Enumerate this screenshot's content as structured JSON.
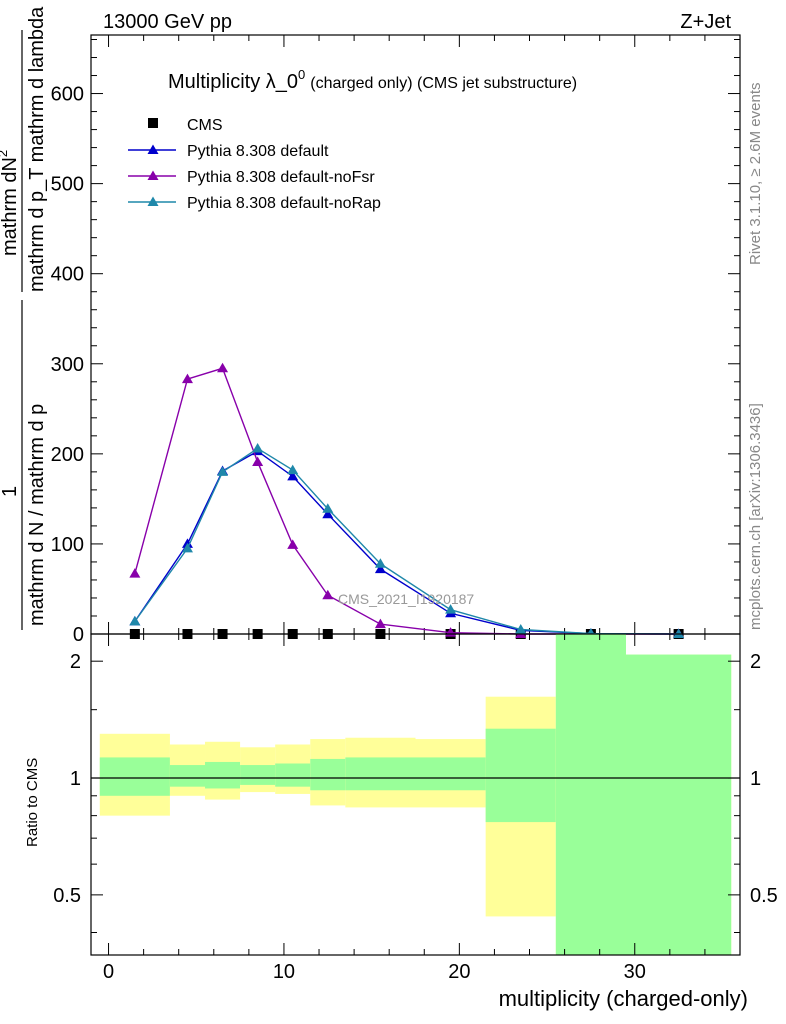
{
  "header": {
    "left": "13000 GeV pp",
    "right": "Z+Jet"
  },
  "side_labels": {
    "rivet": "Rivet 3.1.10, ≥ 2.6M events",
    "site": "mcplots.cern.ch [arXiv:1306.3436]"
  },
  "colors": {
    "cms": "#000000",
    "default": "#0000cc",
    "noFsr": "#8800aa",
    "noRap": "#1f88aa",
    "band_inner": "#99ff99",
    "band_outer": "#ffff99"
  },
  "chart_data": [
    {
      "type": "line",
      "title": "Multiplicity λ_0⁰ (charged only) (CMS jet substructure)",
      "title_main": "Multiplicity λ_0",
      "title_sup": "0",
      "title_sub": "(charged only) (CMS jet substructure)",
      "ylabel_num": "mathrm dN",
      "ylabel_num_sup": "2",
      "ylabel_den": "mathrm d p_T mathrm d lambda",
      "ylabel_prefix_num": "1",
      "ylabel_prefix_den": "mathrm d N / mathrm d p",
      "ylabel_prefix_den_tail": "mathrm d p_T",
      "watermark": "CMS_2021_I1920187",
      "xlim": [
        -1,
        36
      ],
      "ylim": [
        0,
        665
      ],
      "yticks": [
        0,
        100,
        200,
        300,
        400,
        500,
        600
      ],
      "ytick_labels": [
        "0",
        "100",
        "200",
        "300",
        "400",
        "500",
        "600"
      ],
      "grid": false,
      "legend_position": "top-left",
      "series": [
        {
          "name": "CMS",
          "marker": "square",
          "x": [
            1.5,
            4.5,
            6.5,
            8.5,
            10.5,
            12.5,
            15.5,
            19.5,
            23.5,
            27.5,
            32.5
          ],
          "y": [
            0,
            0,
            0,
            0,
            0,
            0,
            0,
            0,
            0,
            0,
            0
          ]
        },
        {
          "name": "Pythia 8.308 default",
          "marker": "triangle",
          "x": [
            1.5,
            4.5,
            6.5,
            8.5,
            10.5,
            12.5,
            15.5,
            19.5,
            23.5,
            27.5,
            32.5
          ],
          "y": [
            14,
            100,
            181,
            203,
            175,
            133,
            72,
            23,
            4,
            0.5,
            0
          ]
        },
        {
          "name": "Pythia 8.308 default-noFsr",
          "marker": "triangle",
          "x": [
            1.5,
            4.5,
            6.5,
            8.5,
            10.5,
            12.5,
            15.5,
            19.5,
            23.5,
            27.5,
            32.5
          ],
          "y": [
            67,
            283,
            295,
            191,
            99,
            43,
            11,
            1.5,
            0,
            0,
            0
          ]
        },
        {
          "name": "Pythia 8.308 default-noRap",
          "marker": "triangle",
          "x": [
            1.5,
            4.5,
            6.5,
            8.5,
            10.5,
            12.5,
            15.5,
            19.5,
            23.5,
            27.5,
            32.5
          ],
          "y": [
            14,
            95,
            180,
            206,
            182,
            139,
            78,
            27,
            5,
            0.5,
            0
          ]
        }
      ]
    },
    {
      "type": "area",
      "ylabel": "Ratio to CMS",
      "xlabel": "multiplicity (charged-only)",
      "xlim": [
        -1,
        36
      ],
      "ylim": [
        0.35,
        2.35
      ],
      "ylog": true,
      "yticks": [
        0.5,
        1,
        2
      ],
      "ytick_labels": [
        "0.5",
        "1",
        "2"
      ],
      "xticks": [
        0,
        10,
        20,
        30
      ],
      "xtick_labels": [
        "0",
        "10",
        "20",
        "30"
      ],
      "reference_line": 1,
      "bin_edges": [
        -0.5,
        3.5,
        5.5,
        7.5,
        9.5,
        11.5,
        13.5,
        17.5,
        21.5,
        25.5,
        29.5,
        35.5
      ],
      "band_outer": {
        "low": [
          0.8,
          0.9,
          0.88,
          0.92,
          0.91,
          0.85,
          0.84,
          0.84,
          0.44,
          0.35,
          0.35
        ],
        "high": [
          1.3,
          1.22,
          1.24,
          1.2,
          1.22,
          1.26,
          1.27,
          1.26,
          1.62,
          2.35,
          2.08
        ]
      },
      "band_inner": {
        "low": [
          0.9,
          0.95,
          0.94,
          0.96,
          0.95,
          0.93,
          0.93,
          0.93,
          0.77,
          0.35,
          0.35
        ],
        "high": [
          1.13,
          1.08,
          1.1,
          1.08,
          1.09,
          1.12,
          1.13,
          1.13,
          1.34,
          2.35,
          2.08
        ]
      }
    }
  ]
}
